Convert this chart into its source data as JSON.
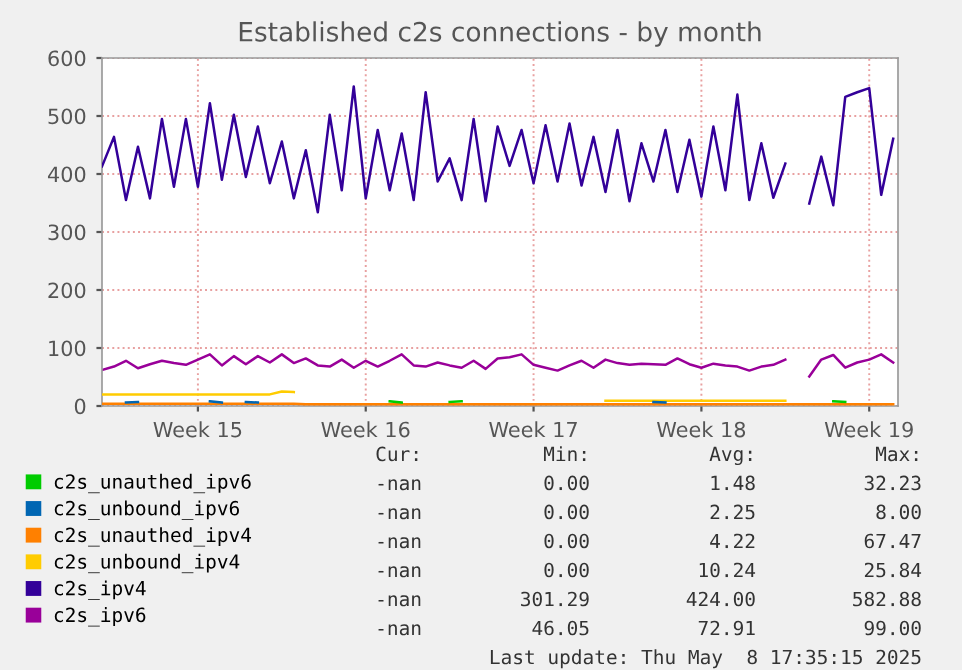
{
  "chart_data": {
    "type": "line",
    "title": "Established c2s connections - by month",
    "categories": [
      null,
      null,
      null,
      null,
      null,
      null,
      null,
      null,
      "Week 15",
      null,
      null,
      null,
      null,
      null,
      null,
      null,
      null,
      null,
      null,
      null,
      null,
      null,
      "Week 16",
      null,
      null,
      null,
      null,
      null,
      null,
      null,
      null,
      null,
      null,
      null,
      null,
      null,
      "Week 17",
      null,
      null,
      null,
      null,
      null,
      null,
      null,
      null,
      null,
      null,
      null,
      null,
      null,
      "Week 18",
      null,
      null,
      null,
      null,
      null,
      null,
      null,
      null,
      null,
      null,
      null,
      null,
      null,
      "Week 19",
      null,
      null
    ],
    "ylim": [
      0,
      600
    ],
    "yticks": [
      0,
      100,
      200,
      300,
      400,
      500,
      600
    ],
    "grid": true,
    "legend": "bottom",
    "marker": "none",
    "line_style": "solid",
    "series": [
      {
        "name": "c2s_unauthed_ipv6",
        "color": "#00cc00",
        "values": [
          null,
          null,
          null,
          null,
          null,
          null,
          null,
          null,
          null,
          null,
          null,
          null,
          null,
          null,
          null,
          null,
          null,
          null,
          null,
          null,
          null,
          null,
          null,
          null,
          8,
          6,
          null,
          null,
          null,
          7,
          8,
          null,
          null,
          null,
          null,
          null,
          null,
          null,
          null,
          null,
          null,
          null,
          null,
          null,
          null,
          null,
          null,
          null,
          null,
          null,
          null,
          null,
          null,
          null,
          null,
          null,
          null,
          null,
          null,
          null,
          null,
          8,
          7,
          null,
          null,
          null,
          null
        ]
      },
      {
        "name": "c2s_unbound_ipv6",
        "color": "#0066b3",
        "values": [
          null,
          null,
          6,
          7,
          null,
          null,
          null,
          null,
          null,
          8,
          6,
          null,
          7,
          6,
          null,
          null,
          null,
          null,
          null,
          null,
          null,
          null,
          null,
          null,
          null,
          null,
          null,
          null,
          null,
          null,
          null,
          null,
          null,
          null,
          null,
          null,
          null,
          null,
          null,
          null,
          null,
          null,
          null,
          null,
          null,
          null,
          7,
          6,
          null,
          null,
          null,
          null,
          null,
          null,
          null,
          null,
          null,
          null,
          null,
          null,
          null,
          null,
          null,
          null,
          null,
          null,
          null
        ]
      },
      {
        "name": "c2s_unauthed_ipv4",
        "color": "#ff8000",
        "values": [
          4,
          4,
          4,
          4,
          4,
          4,
          4,
          4,
          4,
          4,
          4,
          4,
          4,
          4,
          4,
          4,
          4,
          3,
          3,
          3,
          3,
          3,
          3,
          3,
          3,
          3,
          3,
          3,
          3,
          3,
          3,
          3,
          3,
          3,
          3,
          3,
          3,
          3,
          3,
          3,
          3,
          3,
          3,
          3,
          3,
          3,
          3,
          3,
          3,
          3,
          3,
          3,
          3,
          3,
          3,
          3,
          3,
          3,
          3,
          3,
          3,
          3,
          3,
          3,
          3,
          3,
          3
        ]
      },
      {
        "name": "c2s_unbound_ipv4",
        "color": "#ffcc00",
        "values": [
          20,
          20,
          20,
          20,
          20,
          20,
          20,
          20,
          20,
          20,
          20,
          20,
          20,
          20,
          20,
          25,
          24,
          null,
          null,
          null,
          null,
          null,
          null,
          null,
          null,
          null,
          null,
          null,
          null,
          null,
          null,
          null,
          null,
          null,
          null,
          null,
          null,
          null,
          null,
          null,
          null,
          null,
          9,
          9,
          9,
          9,
          9,
          9,
          9,
          9,
          9,
          9,
          9,
          9,
          9,
          9,
          9,
          9,
          null,
          null,
          null,
          null,
          null,
          null,
          null,
          null,
          null
        ]
      },
      {
        "name": "c2s_ipv4",
        "color": "#330099",
        "values": [
          413,
          464,
          355,
          447,
          358,
          495,
          378,
          495,
          378,
          522,
          390,
          502,
          395,
          482,
          384,
          456,
          358,
          441,
          334,
          502,
          372,
          551,
          358,
          476,
          372,
          470,
          355,
          541,
          387,
          427,
          355,
          495,
          353,
          482,
          414,
          476,
          384,
          484,
          387,
          487,
          380,
          464,
          369,
          476,
          353,
          453,
          387,
          476,
          369,
          459,
          361,
          482,
          372,
          537,
          355,
          453,
          359,
          418,
          null,
          349,
          430,
          346,
          533,
          541,
          548,
          364,
          461
        ]
      },
      {
        "name": "c2s_ipv6",
        "color": "#990099",
        "values": [
          62,
          68,
          78,
          65,
          72,
          78,
          74,
          71,
          80,
          89,
          70,
          86,
          72,
          86,
          75,
          89,
          74,
          82,
          70,
          68,
          80,
          66,
          78,
          68,
          78,
          89,
          70,
          68,
          75,
          70,
          66,
          78,
          64,
          82,
          84,
          89,
          71,
          66,
          61,
          70,
          78,
          66,
          80,
          74,
          71,
          73,
          72,
          71,
          82,
          72,
          66,
          73,
          70,
          68,
          61,
          68,
          71,
          80,
          null,
          51,
          80,
          88,
          66,
          75,
          80,
          89,
          75
        ]
      }
    ],
    "annotations": [
      "Cur:",
      "Min:",
      "Avg:",
      "Max:",
      "-nan",
      "0.00",
      "1.48",
      "32.23",
      "-nan",
      "0.00",
      "2.25",
      "8.00",
      "-nan",
      "0.00",
      "4.22",
      "67.47",
      "-nan",
      "0.00",
      "10.24",
      "25.84",
      "-nan",
      "301.29",
      "424.00",
      "582.88",
      "-nan",
      "46.05",
      "72.91",
      "99.00",
      "Last update: Thu May  8 17:35:15 2025"
    ]
  }
}
